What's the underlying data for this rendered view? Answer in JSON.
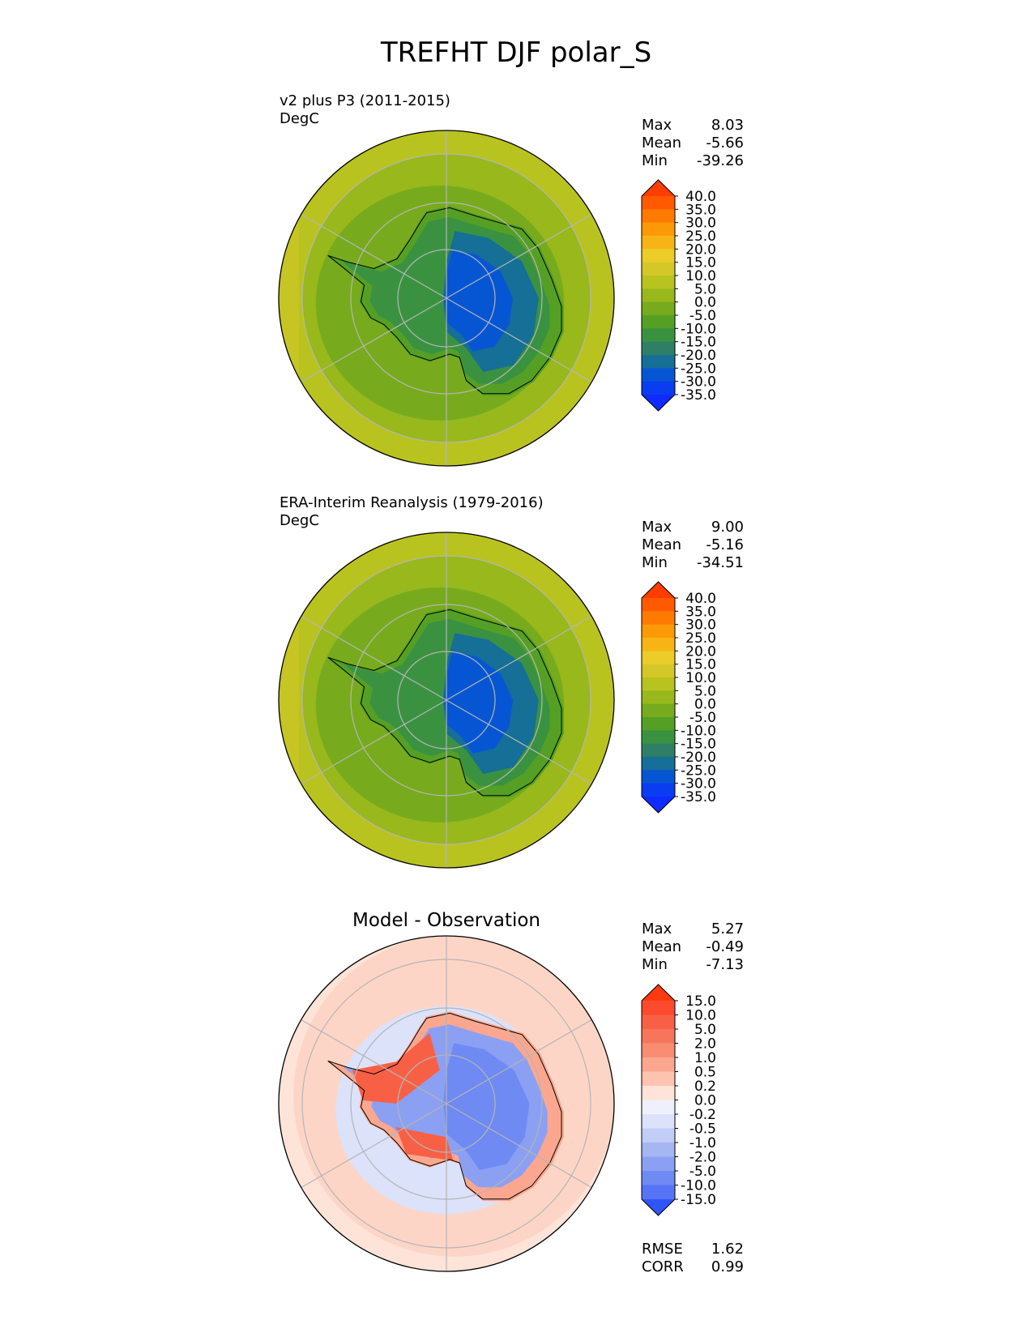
{
  "page": {
    "title": "TREFHT DJF polar_S"
  },
  "panels": [
    {
      "id": "test",
      "label": "v2 plus P3 (2011-2015)",
      "units": "DegC",
      "heading": "",
      "stats": [
        {
          "name": "Max",
          "value": "8.03"
        },
        {
          "name": "Mean",
          "value": "-5.66"
        },
        {
          "name": "Min",
          "value": "-39.26"
        }
      ],
      "footer_stats": [],
      "field": "abs_model"
    },
    {
      "id": "ref",
      "label": "ERA-Interim Reanalysis (1979-2016)",
      "units": "DegC",
      "heading": "",
      "stats": [
        {
          "name": "Max",
          "value": "9.00"
        },
        {
          "name": "Mean",
          "value": "-5.16"
        },
        {
          "name": "Min",
          "value": "-34.51"
        }
      ],
      "footer_stats": [],
      "field": "abs_obs"
    },
    {
      "id": "diff",
      "label": "",
      "units": "",
      "heading": "Model - Observation",
      "stats": [
        {
          "name": "Max",
          "value": "5.27"
        },
        {
          "name": "Mean",
          "value": "-0.49"
        },
        {
          "name": "Min",
          "value": "-7.13"
        }
      ],
      "footer_stats": [
        {
          "name": "RMSE",
          "value": "1.62"
        },
        {
          "name": "CORR",
          "value": "0.99"
        }
      ],
      "field": "diff"
    }
  ],
  "chart_data": [
    {
      "type": "heatmap",
      "projection": "south-polar-stereographic",
      "title": "v2 plus P3 (2011-2015)",
      "units": "DegC",
      "stats": {
        "max": 8.03,
        "mean": -5.66,
        "min": -39.26
      },
      "colorbar": {
        "tick_labels": [
          "40.0",
          "35.0",
          "30.0",
          "25.0",
          "20.0",
          "15.0",
          "10.0",
          "5.0",
          "0.0",
          "-5.0",
          "-10.0",
          "-15.0",
          "-20.0",
          "-25.0",
          "-30.0",
          "-35.0"
        ],
        "colors": [
          "#ff3d00",
          "#ff5a00",
          "#ff7a00",
          "#fb9a06",
          "#f7b515",
          "#eccc28",
          "#d4c828",
          "#b9c31f",
          "#98b81b",
          "#77ab1d",
          "#55a024",
          "#3a9241",
          "#2e7f66",
          "#156f96",
          "#0656d4",
          "#0a3cf0",
          "#0f2bff"
        ],
        "extend": "both"
      },
      "description_values": {
        "ocean_DegC": [
          0,
          5
        ],
        "coast_DegC": [
          -10,
          -5
        ],
        "plateau_DegC": [
          -35,
          -25
        ]
      },
      "grid": true
    },
    {
      "type": "heatmap",
      "projection": "south-polar-stereographic",
      "title": "ERA-Interim Reanalysis (1979-2016)",
      "units": "DegC",
      "stats": {
        "max": 9.0,
        "mean": -5.16,
        "min": -34.51
      },
      "colorbar": {
        "tick_labels": [
          "40.0",
          "35.0",
          "30.0",
          "25.0",
          "20.0",
          "15.0",
          "10.0",
          "5.0",
          "0.0",
          "-5.0",
          "-10.0",
          "-15.0",
          "-20.0",
          "-25.0",
          "-30.0",
          "-35.0"
        ],
        "colors": [
          "#ff3d00",
          "#ff5a00",
          "#ff7a00",
          "#fb9a06",
          "#f7b515",
          "#eccc28",
          "#d4c828",
          "#b9c31f",
          "#98b81b",
          "#77ab1d",
          "#55a024",
          "#3a9241",
          "#2e7f66",
          "#156f96",
          "#0656d4",
          "#0a3cf0",
          "#0f2bff"
        ],
        "extend": "both"
      },
      "grid": true
    },
    {
      "type": "heatmap",
      "projection": "south-polar-stereographic",
      "title": "Model - Observation",
      "units": "",
      "stats": {
        "max": 5.27,
        "mean": -0.49,
        "min": -7.13,
        "rmse": 1.62,
        "corr": 0.99
      },
      "colorbar": {
        "tick_labels": [
          "15.0",
          "10.0",
          "5.0",
          "2.0",
          "1.0",
          "0.5",
          "0.2",
          "0.0",
          "-0.2",
          "-0.5",
          "-1.0",
          "-2.0",
          "-5.0",
          "-10.0",
          "-15.0"
        ],
        "colors": [
          "#ff3a10",
          "#fb4a2e",
          "#f86046",
          "#f7765b",
          "#f88d73",
          "#fba78f",
          "#fdc3b1",
          "#fee3d8",
          "#eef1fb",
          "#dbe2f9",
          "#c1cdf6",
          "#a5b6f3",
          "#8ba0f2",
          "#6f8af3",
          "#5674f5",
          "#2f55f8"
        ],
        "extend": "both"
      },
      "grid": true
    }
  ]
}
